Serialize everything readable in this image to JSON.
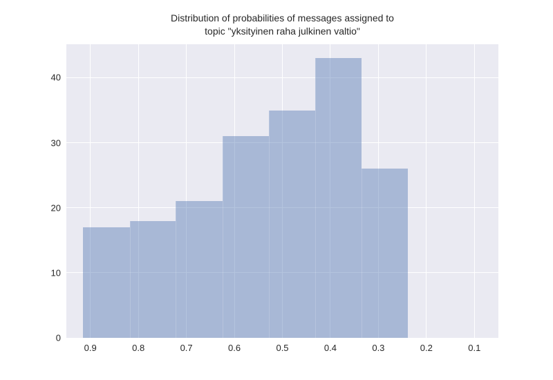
{
  "title": {
    "line1": "Distribution of probabilities of messages assigned to",
    "line2": "topic \"yksityinen raha julkinen valtio\""
  },
  "chart_data": {
    "type": "bar",
    "subtype": "histogram",
    "title": "Distribution of probabilities of messages assigned to topic \"yksityinen raha julkinen valtio\"",
    "xlabel": "",
    "ylabel": "",
    "bin_edges": [
      0.915,
      0.818,
      0.722,
      0.625,
      0.528,
      0.432,
      0.335,
      0.238
    ],
    "counts": [
      17,
      18,
      21,
      31,
      35,
      43,
      26
    ],
    "x_ticks": [
      0.9,
      0.8,
      0.7,
      0.6,
      0.5,
      0.4,
      0.3,
      0.2,
      0.1
    ],
    "x_tick_labels": [
      "0.9",
      "0.8",
      "0.7",
      "0.6",
      "0.5",
      "0.4",
      "0.3",
      "0.2",
      "0.1"
    ],
    "y_ticks": [
      0,
      10,
      20,
      30,
      40
    ],
    "y_tick_labels": [
      "0",
      "10",
      "20",
      "30",
      "40"
    ],
    "xlim": [
      0.95,
      0.05
    ],
    "ylim": [
      0,
      45.15
    ],
    "x_axis_inverted": true,
    "grid": true,
    "legend": false,
    "colors": {
      "bar_fill_rgba": "rgba(76,114,176,0.42)",
      "bar_seam_rgba": "rgba(255,255,255,0.18)",
      "plot_background": "#eaeaf2",
      "gridline": "#ffffff",
      "text": "#262626",
      "figure_background": "#ffffff"
    }
  }
}
